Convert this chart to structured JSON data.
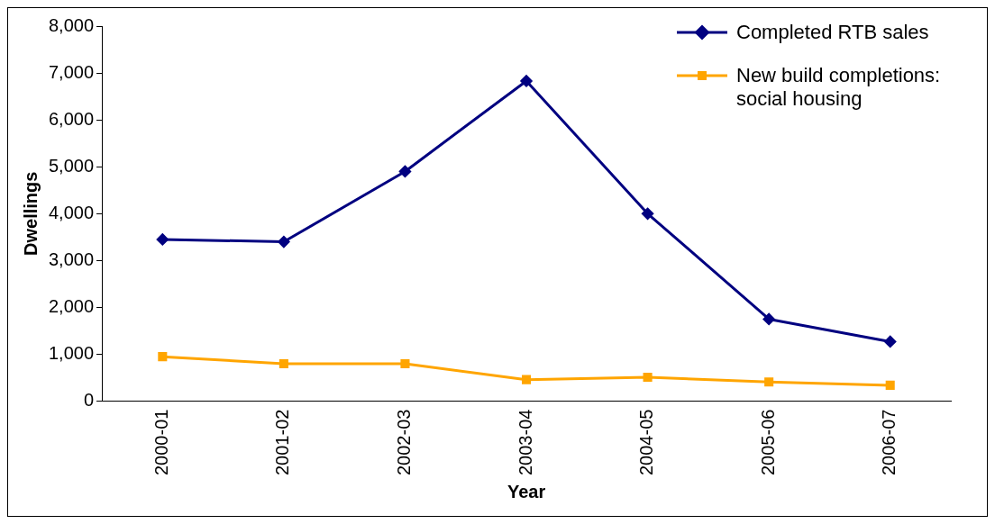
{
  "chart_data": {
    "type": "line",
    "xlabel": "Year",
    "ylabel": "Dwellings",
    "categories": [
      "2000-01",
      "2001-02",
      "2002-03",
      "2003-04",
      "2004-05",
      "2005-06",
      "2006-07"
    ],
    "series": [
      {
        "name": "Completed RTB sales",
        "color": "#000080",
        "marker": "diamond",
        "values": [
          3450,
          3400,
          4900,
          6830,
          4000,
          1750,
          1270
        ]
      },
      {
        "name": "New build completions: social housing",
        "color": "#ffa500",
        "marker": "square",
        "values": [
          950,
          800,
          800,
          460,
          510,
          410,
          340
        ]
      }
    ],
    "ylim": [
      0,
      8000
    ],
    "yticks": [
      {
        "value": 0,
        "label": "0"
      },
      {
        "value": 1000,
        "label": "1,000"
      },
      {
        "value": 2000,
        "label": "2,000"
      },
      {
        "value": 3000,
        "label": "3,000"
      },
      {
        "value": 4000,
        "label": "4,000"
      },
      {
        "value": 5000,
        "label": "5,000"
      },
      {
        "value": 6000,
        "label": "6,000"
      },
      {
        "value": 7000,
        "label": "7,000"
      },
      {
        "value": 8000,
        "label": "8,000"
      }
    ],
    "grid": false,
    "legend": "top right",
    "line_style": "solid"
  }
}
